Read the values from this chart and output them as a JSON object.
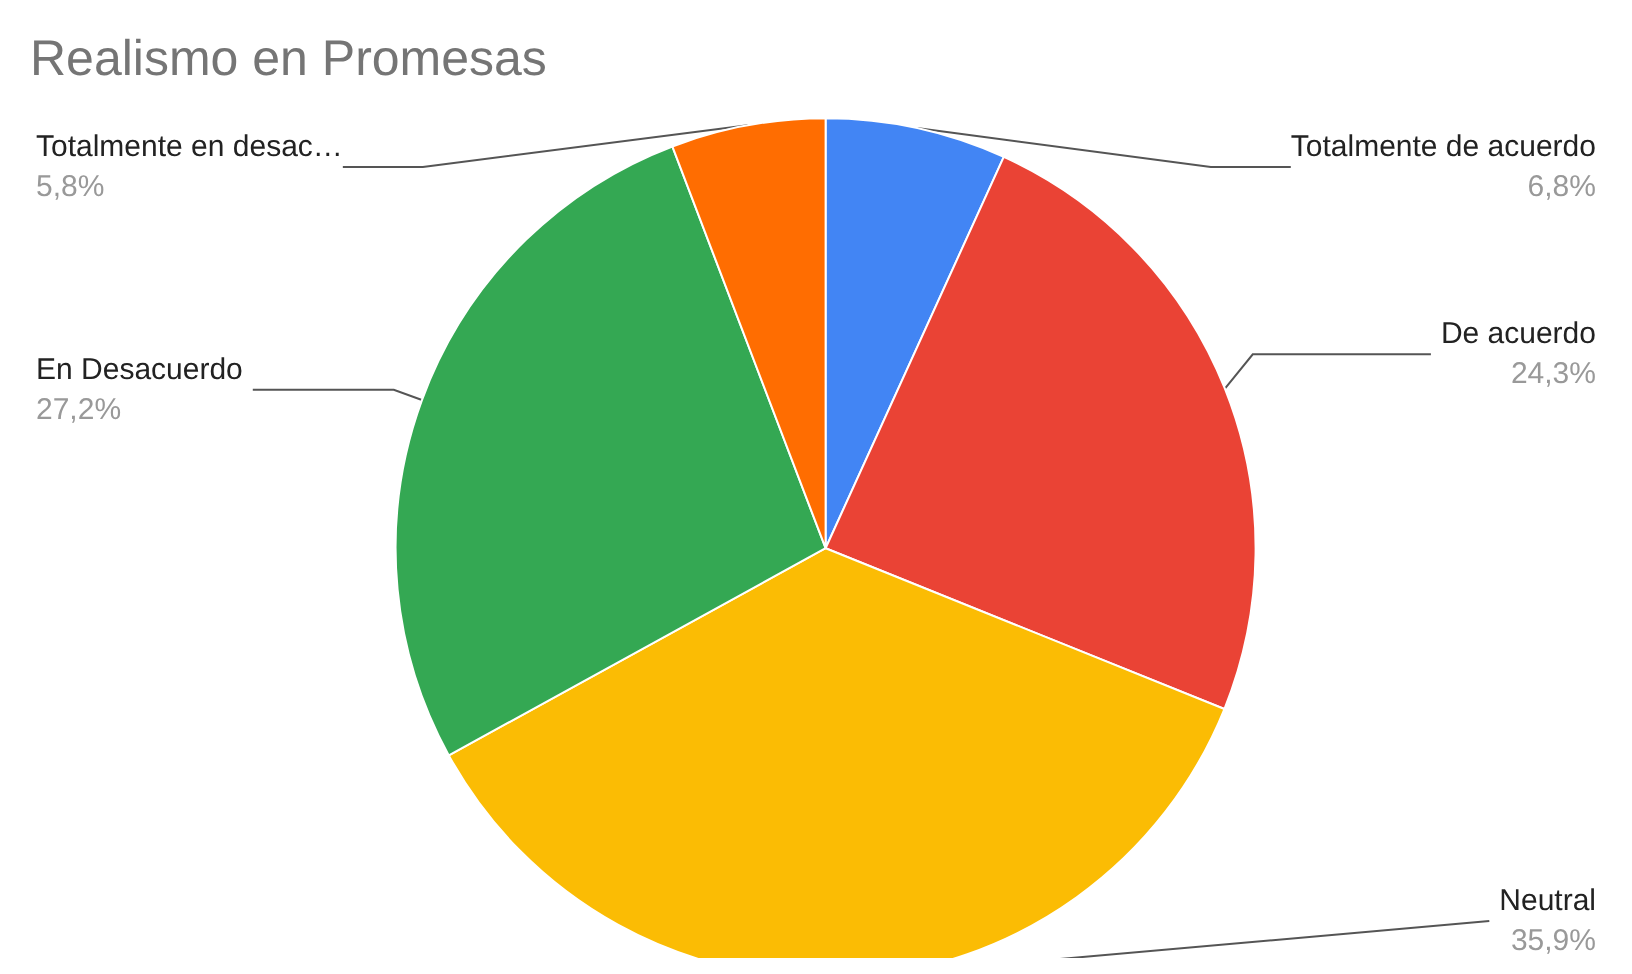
{
  "chart_data": {
    "type": "pie",
    "title": "Realismo en Promesas",
    "categories": [
      "Totalmente de acuerdo",
      "De acuerdo",
      "Neutral",
      "En Desacuerdo",
      "Totalmente en desac…"
    ],
    "values": [
      6.8,
      24.3,
      35.9,
      27.2,
      5.8
    ],
    "value_labels": [
      "6,8%",
      "24,3%",
      "35,9%",
      "27,2%",
      "5,8%"
    ],
    "colors": [
      "#4285f4",
      "#ea4335",
      "#fbbc04",
      "#34a853",
      "#ff6d01"
    ],
    "legend": false
  }
}
